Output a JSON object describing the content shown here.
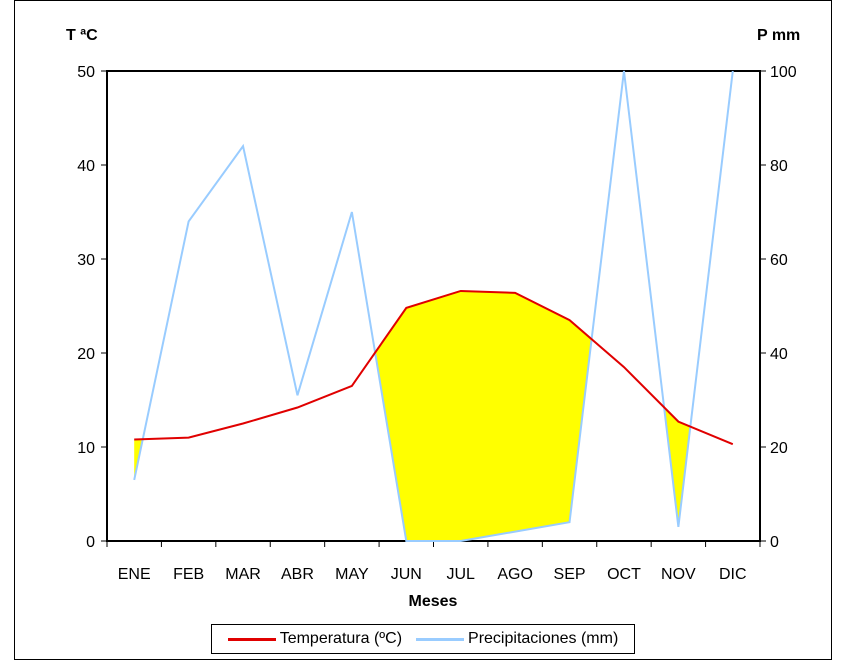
{
  "chart_data": {
    "type": "line",
    "xlabel": "Meses",
    "categories": [
      "ENE",
      "FEB",
      "MAR",
      "ABR",
      "MAY",
      "JUN",
      "JUL",
      "AGO",
      "SEP",
      "OCT",
      "NOV",
      "DIC"
    ],
    "y_left": {
      "label": "T ªC",
      "ylim": [
        0,
        50
      ],
      "ticks": [
        "0",
        "10",
        "20",
        "30",
        "40",
        "50"
      ]
    },
    "y_right": {
      "label": "P mm",
      "ylim": [
        0,
        100
      ],
      "ticks": [
        "0",
        "20",
        "40",
        "60",
        "80",
        "100"
      ]
    },
    "series": [
      {
        "name": "Temperatura (ºC)",
        "axis": "left",
        "color": "#e00000",
        "values": [
          10.8,
          11.0,
          12.5,
          14.2,
          16.5,
          24.8,
          26.6,
          26.4,
          23.5,
          18.5,
          12.7,
          10.3
        ]
      },
      {
        "name": "Precipitaciones (mm)",
        "axis": "right",
        "color": "#99ccff",
        "values": [
          13,
          68,
          84,
          31,
          70,
          0,
          0,
          2,
          4,
          100,
          3,
          100
        ]
      }
    ],
    "dry_fill_color": "#ffff00",
    "grid": false,
    "legend_position": "bottom"
  }
}
